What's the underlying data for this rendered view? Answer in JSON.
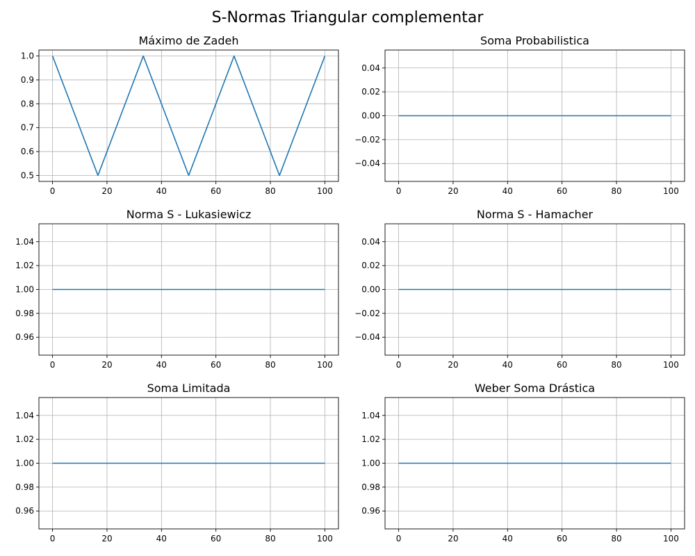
{
  "figure": {
    "title": "S-Normas Triangular complementar"
  },
  "style": {
    "line_color": "#1f77b4",
    "grid_color": "#b0b0b0",
    "axes_color": "#000000",
    "background": "#ffffff"
  },
  "chart_data": [
    {
      "type": "line",
      "title": "Máximo de Zadeh",
      "xlabel": "",
      "ylabel": "",
      "grid": true,
      "xlim": [
        -5,
        105
      ],
      "ylim": [
        0.475,
        1.025
      ],
      "xticks": [
        0,
        20,
        40,
        60,
        80,
        100
      ],
      "xtick_labels": [
        "0",
        "20",
        "40",
        "60",
        "80",
        "100"
      ],
      "yticks": [
        0.5,
        0.6,
        0.7,
        0.8,
        0.9,
        1.0
      ],
      "ytick_labels": [
        "0.5",
        "0.6",
        "0.7",
        "0.8",
        "0.9",
        "1.0"
      ],
      "series": [
        {
          "x": [
            0,
            16.67,
            33.33,
            50,
            66.67,
            83.33,
            100
          ],
          "y": [
            1.0,
            0.5,
            1.0,
            0.5,
            1.0,
            0.5,
            1.0
          ]
        }
      ]
    },
    {
      "type": "line",
      "title": "Soma Probabilistica",
      "xlabel": "",
      "ylabel": "",
      "grid": true,
      "xlim": [
        -5,
        105
      ],
      "ylim": [
        -0.055,
        0.055
      ],
      "xticks": [
        0,
        20,
        40,
        60,
        80,
        100
      ],
      "xtick_labels": [
        "0",
        "20",
        "40",
        "60",
        "80",
        "100"
      ],
      "yticks": [
        -0.04,
        -0.02,
        0.0,
        0.02,
        0.04
      ],
      "ytick_labels": [
        "−0.04",
        "−0.02",
        "0.00",
        "0.02",
        "0.04"
      ],
      "series": [
        {
          "x": [
            0,
            100
          ],
          "y": [
            0.0,
            0.0
          ]
        }
      ]
    },
    {
      "type": "line",
      "title": "Norma S - Lukasiewicz",
      "xlabel": "",
      "ylabel": "",
      "grid": true,
      "xlim": [
        -5,
        105
      ],
      "ylim": [
        0.945,
        1.055
      ],
      "xticks": [
        0,
        20,
        40,
        60,
        80,
        100
      ],
      "xtick_labels": [
        "0",
        "20",
        "40",
        "60",
        "80",
        "100"
      ],
      "yticks": [
        0.96,
        0.98,
        1.0,
        1.02,
        1.04
      ],
      "ytick_labels": [
        "0.96",
        "0.98",
        "1.00",
        "1.02",
        "1.04"
      ],
      "series": [
        {
          "x": [
            0,
            100
          ],
          "y": [
            1.0,
            1.0
          ]
        }
      ]
    },
    {
      "type": "line",
      "title": "Norma S - Hamacher",
      "xlabel": "",
      "ylabel": "",
      "grid": true,
      "xlim": [
        -5,
        105
      ],
      "ylim": [
        -0.055,
        0.055
      ],
      "xticks": [
        0,
        20,
        40,
        60,
        80,
        100
      ],
      "xtick_labels": [
        "0",
        "20",
        "40",
        "60",
        "80",
        "100"
      ],
      "yticks": [
        -0.04,
        -0.02,
        0.0,
        0.02,
        0.04
      ],
      "ytick_labels": [
        "−0.04",
        "−0.02",
        "0.00",
        "0.02",
        "0.04"
      ],
      "series": [
        {
          "x": [
            0,
            100
          ],
          "y": [
            0.0,
            0.0
          ]
        }
      ]
    },
    {
      "type": "line",
      "title": "Soma Limitada",
      "xlabel": "",
      "ylabel": "",
      "grid": true,
      "xlim": [
        -5,
        105
      ],
      "ylim": [
        0.945,
        1.055
      ],
      "xticks": [
        0,
        20,
        40,
        60,
        80,
        100
      ],
      "xtick_labels": [
        "0",
        "20",
        "40",
        "60",
        "80",
        "100"
      ],
      "yticks": [
        0.96,
        0.98,
        1.0,
        1.02,
        1.04
      ],
      "ytick_labels": [
        "0.96",
        "0.98",
        "1.00",
        "1.02",
        "1.04"
      ],
      "series": [
        {
          "x": [
            0,
            100
          ],
          "y": [
            1.0,
            1.0
          ]
        }
      ]
    },
    {
      "type": "line",
      "title": "Weber Soma Drástica",
      "xlabel": "",
      "ylabel": "",
      "grid": true,
      "xlim": [
        -5,
        105
      ],
      "ylim": [
        0.945,
        1.055
      ],
      "xticks": [
        0,
        20,
        40,
        60,
        80,
        100
      ],
      "xtick_labels": [
        "0",
        "20",
        "40",
        "60",
        "80",
        "100"
      ],
      "yticks": [
        0.96,
        0.98,
        1.0,
        1.02,
        1.04
      ],
      "ytick_labels": [
        "0.96",
        "0.98",
        "1.00",
        "1.02",
        "1.04"
      ],
      "series": [
        {
          "x": [
            0,
            100
          ],
          "y": [
            1.0,
            1.0
          ]
        }
      ]
    }
  ]
}
